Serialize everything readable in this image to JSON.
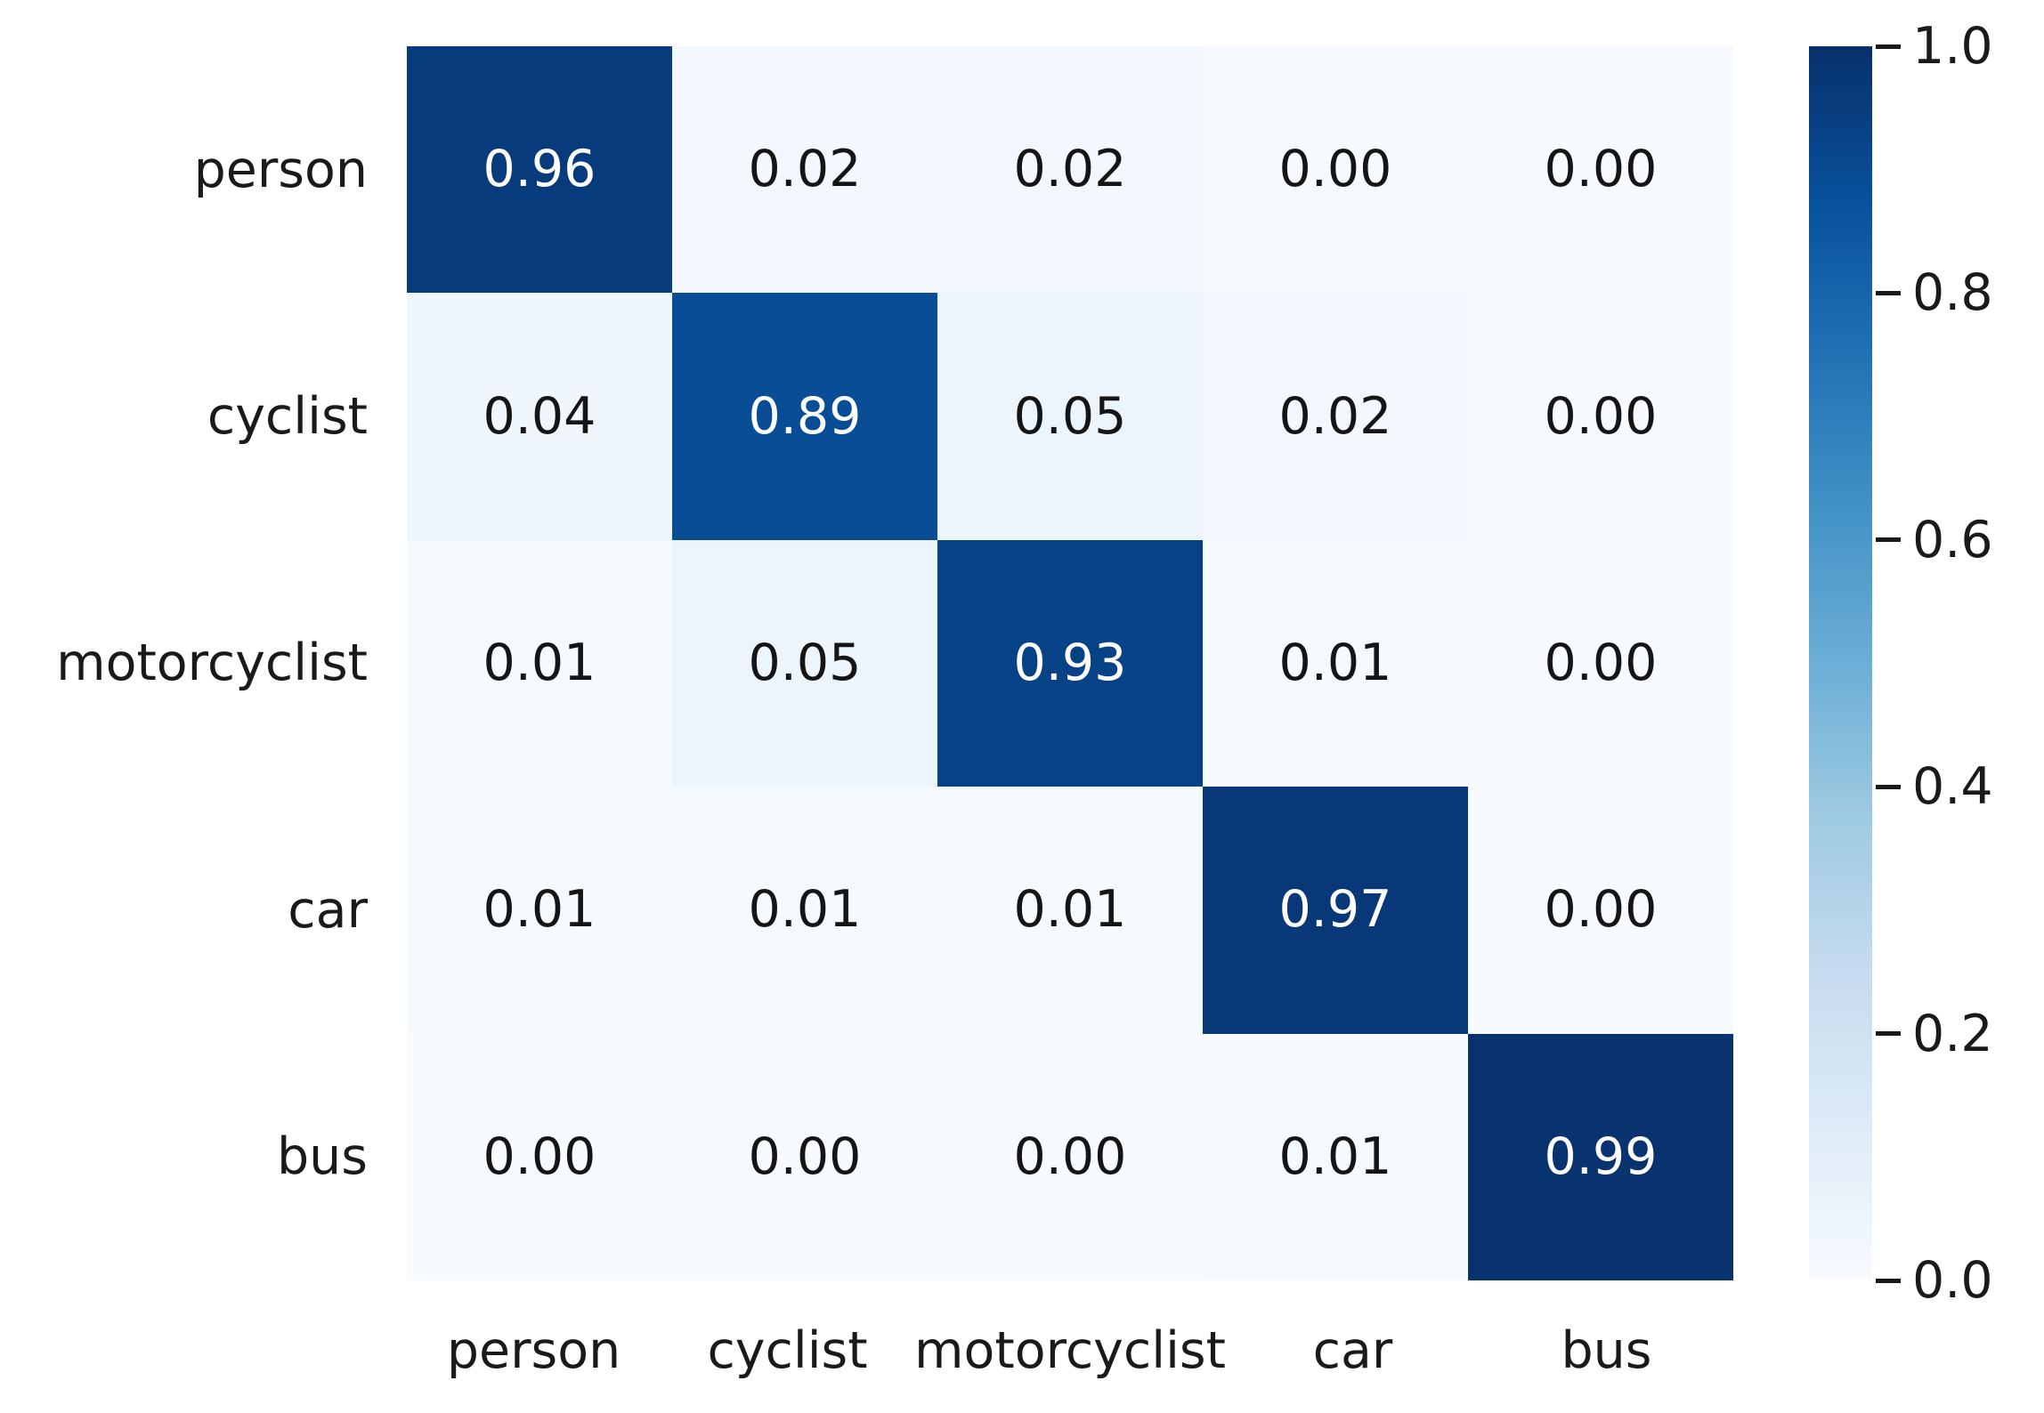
{
  "figure": {
    "background": "#ffffff"
  },
  "chart_data": {
    "type": "heatmap",
    "title": "",
    "xlabel": "",
    "ylabel": "",
    "categories": [
      "person",
      "cyclist",
      "motorcyclist",
      "car",
      "bus"
    ],
    "x_tick_labels": [
      "person",
      "cyclist",
      "motorcyclist",
      "car",
      "bus"
    ],
    "y_tick_labels": [
      "person",
      "cyclist",
      "motorcyclist",
      "car",
      "bus"
    ],
    "matrix": [
      [
        0.96,
        0.02,
        0.02,
        0.0,
        0.0
      ],
      [
        0.04,
        0.89,
        0.05,
        0.02,
        0.0
      ],
      [
        0.01,
        0.05,
        0.93,
        0.01,
        0.0
      ],
      [
        0.01,
        0.01,
        0.01,
        0.97,
        0.0
      ],
      [
        0.0,
        0.0,
        0.0,
        0.01,
        0.99
      ]
    ],
    "cell_value_decimals": 2,
    "value_range": [
      0.0,
      1.0
    ],
    "grid": false,
    "legend": false,
    "colormap": {
      "name": "Blues",
      "stops": [
        "#f7fbff",
        "#deebf7",
        "#c6dbef",
        "#9ecae1",
        "#6baed6",
        "#4292c6",
        "#2171b5",
        "#08519c",
        "#08306b"
      ]
    },
    "colorbar": {
      "position": "right",
      "vmin": 0.0,
      "vmax": 1.0,
      "tick_values": [
        1.0,
        0.8,
        0.6,
        0.4,
        0.2,
        0.0
      ],
      "tick_labels": [
        "1.0",
        "0.8",
        "0.6",
        "0.4",
        "0.2",
        "0.0"
      ]
    },
    "annotation_text_colors": {
      "on_dark": "#ffffff",
      "on_light": "#151515"
    },
    "axis_text_color": "#1a1a1a"
  }
}
